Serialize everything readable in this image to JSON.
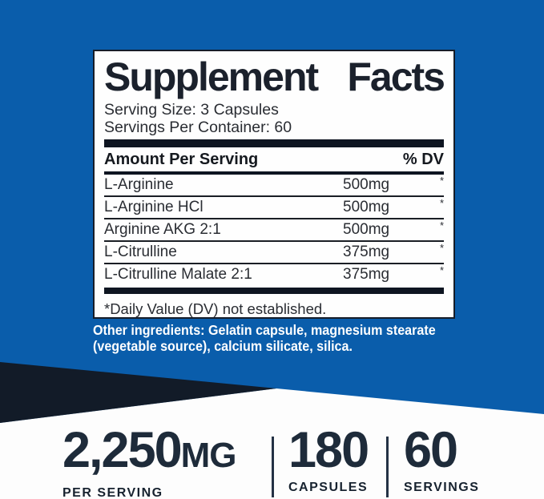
{
  "colors": {
    "background_blue": "#0a5dab",
    "dark_navy": "#121b28",
    "panel_white": "#fefefe",
    "text_navy": "#1e2b3a",
    "white": "#ffffff"
  },
  "label": {
    "title_word1": "Supplement",
    "title_word2": "Facts",
    "serving_size": "Serving Size: 3 Capsules",
    "servings_per_container": "Servings Per Container: 60",
    "header": {
      "left": "Amount Per Serving",
      "right": "% DV"
    },
    "rows": [
      {
        "name": "L-Arginine",
        "amount": "500mg",
        "dv": "*"
      },
      {
        "name": "L-Arginine HCl",
        "amount": "500mg",
        "dv": "*"
      },
      {
        "name": "Arginine AKG 2:1",
        "amount": "500mg",
        "dv": "*"
      },
      {
        "name": "L-Citrulline",
        "amount": "375mg",
        "dv": "*"
      },
      {
        "name": "L-Citrulline Malate 2:1",
        "amount": "375mg",
        "dv": "*"
      }
    ],
    "footnote": "*Daily Value (DV) not established.",
    "other_ingredients_line1": "Other ingredients: Gelatin capsule, magnesium stearate",
    "other_ingredients_line2": "(vegetable source), calcium silicate, silica."
  },
  "stats": [
    {
      "value": "2,250",
      "unit": "MG",
      "label": "PER SERVING"
    },
    {
      "value": "180",
      "unit": "",
      "label": "CAPSULES"
    },
    {
      "value": "60",
      "unit": "",
      "label": "SERVINGS"
    }
  ]
}
